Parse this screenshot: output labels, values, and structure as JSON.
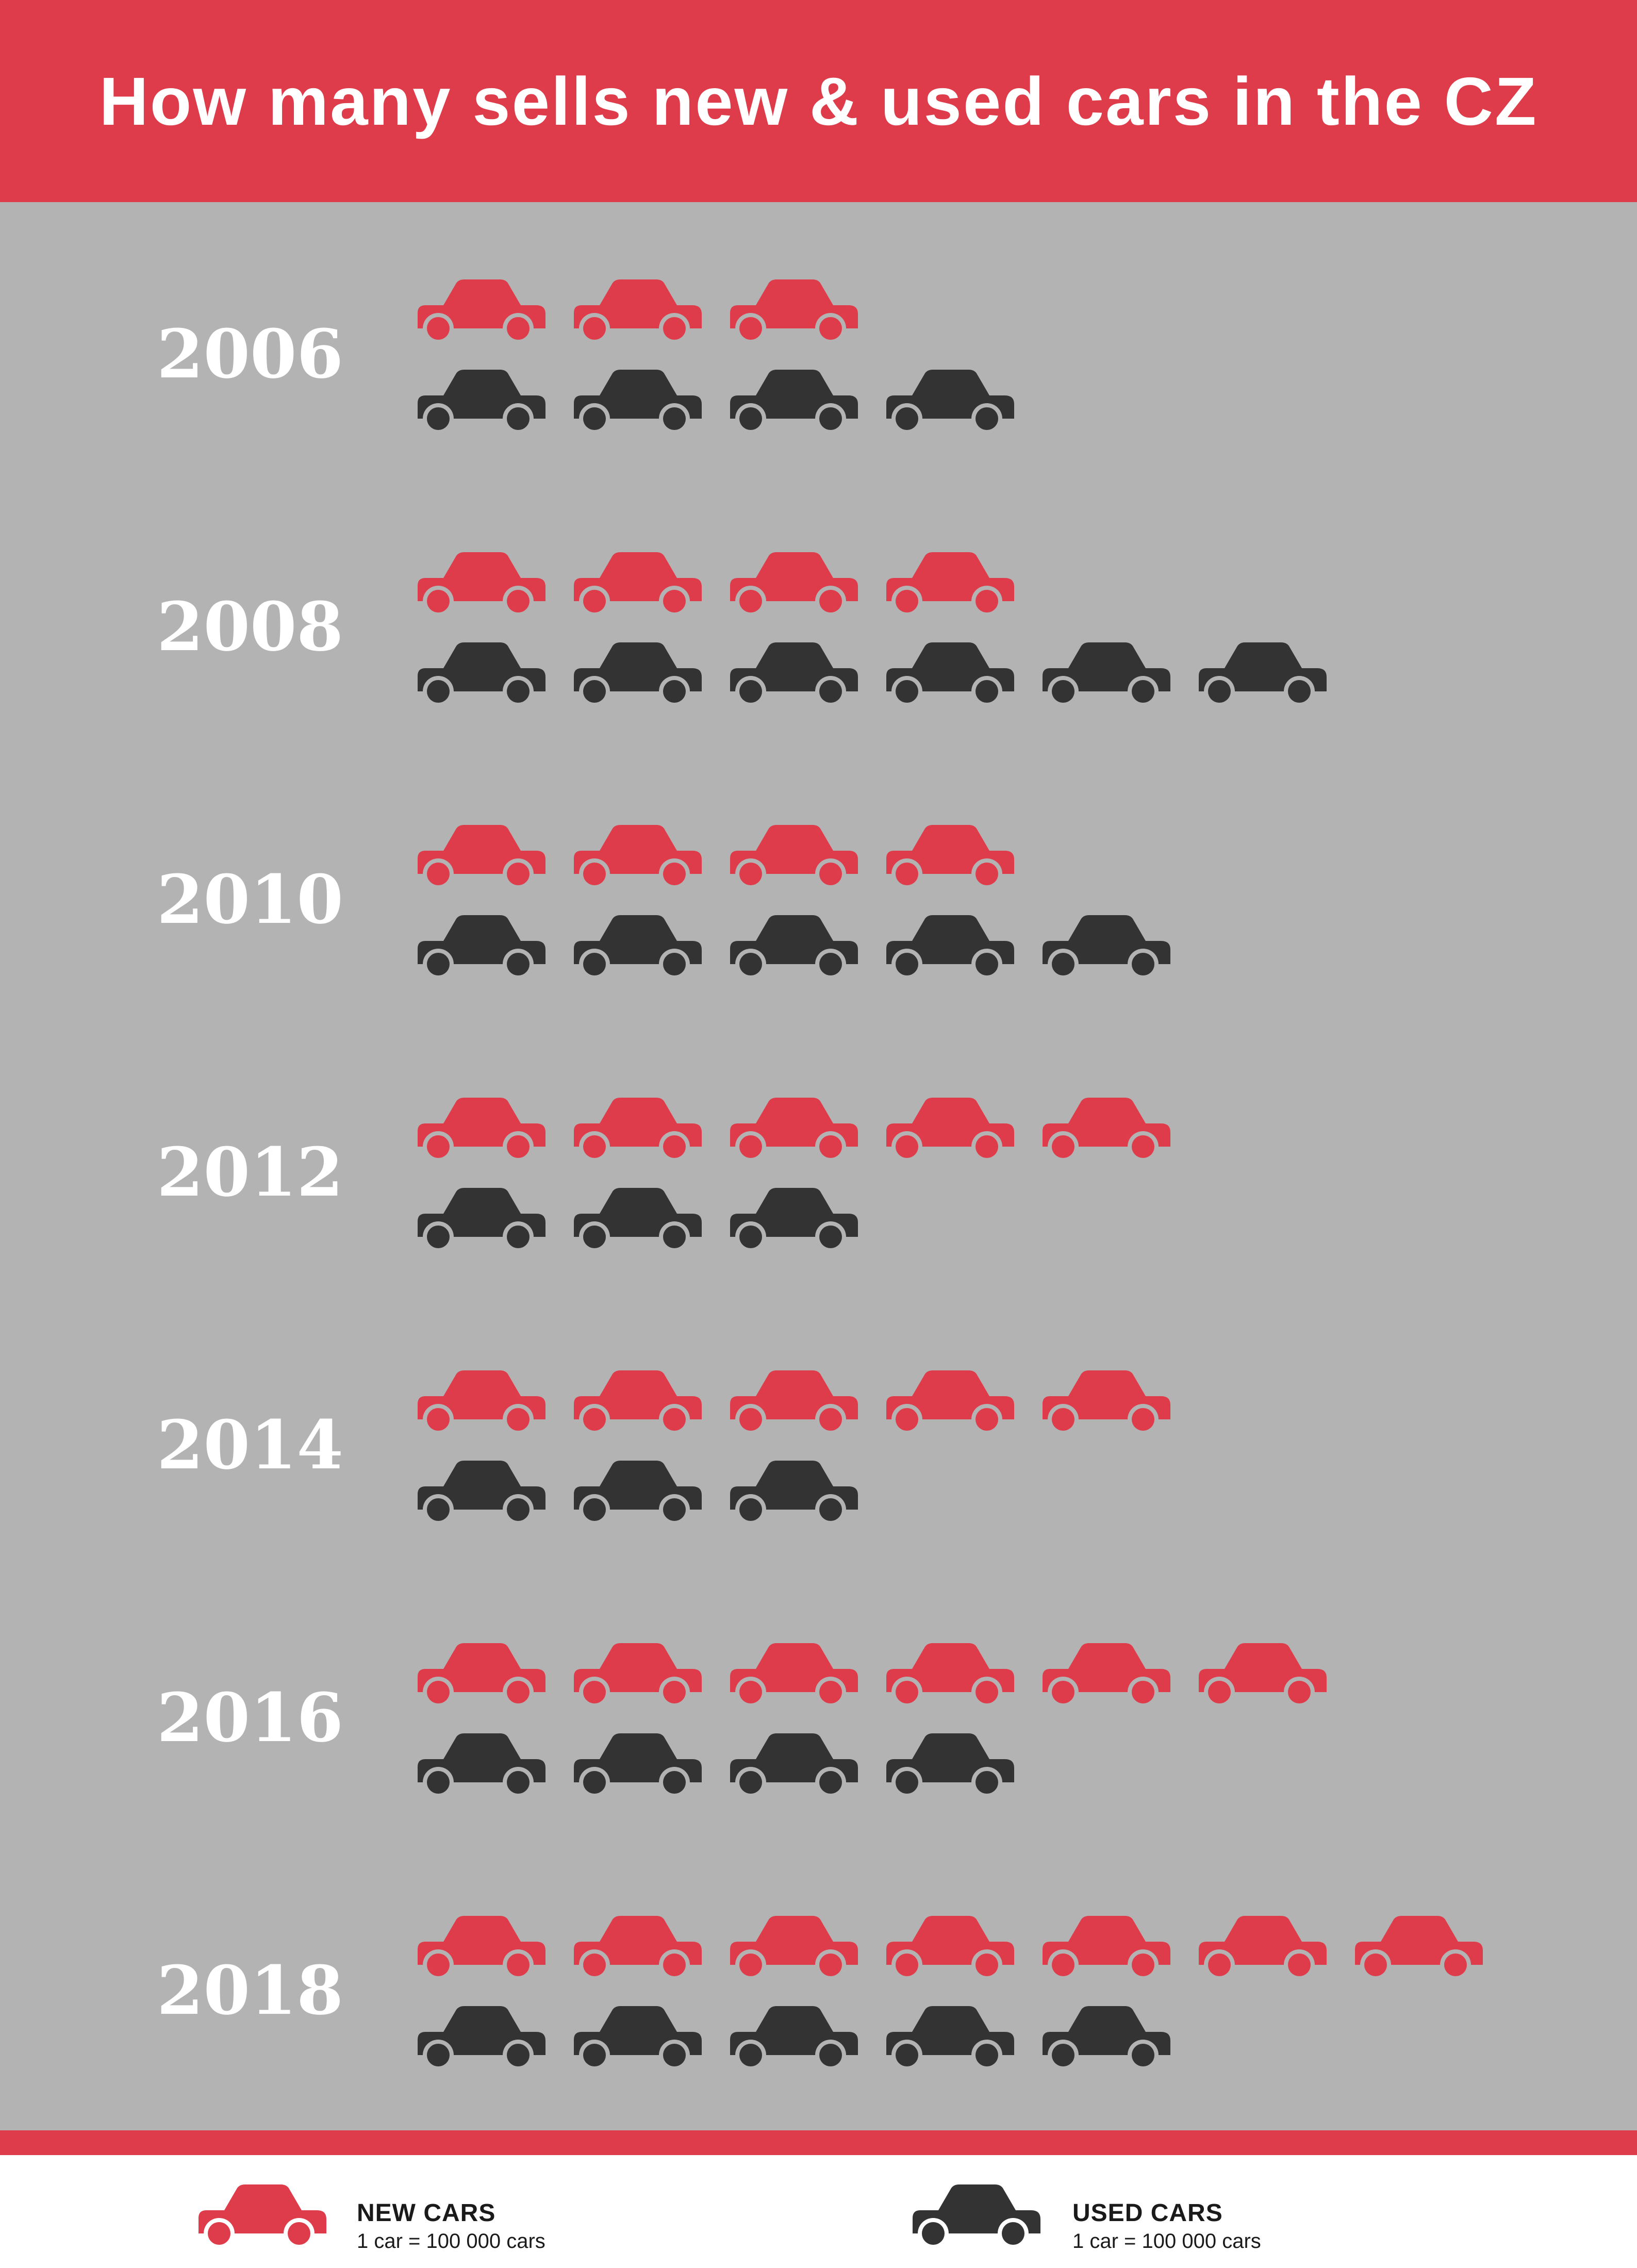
{
  "title": "How many sells new & used cars in the CZ",
  "colors": {
    "header": "#df3c4b",
    "background": "#b3b3b3",
    "new_cars": "#df3c4b",
    "used_cars": "#333333",
    "year_label": "#ffffff"
  },
  "icons": {
    "new_car": "car-icon",
    "used_car": "car-icon"
  },
  "legend": {
    "new": {
      "title": "NEW CARS",
      "unit": "1 car = 100 000 cars"
    },
    "used": {
      "title": "USED CARS",
      "unit": "1 car = 100 000 cars"
    }
  },
  "chart_data": {
    "type": "pictogram",
    "unit_value": 100000,
    "categories": [
      "2006",
      "2008",
      "2010",
      "2012",
      "2014",
      "2016",
      "2018"
    ],
    "series": [
      {
        "name": "NEW CARS",
        "color": "#df3c4b",
        "values": [
          300000,
          400000,
          400000,
          500000,
          500000,
          600000,
          700000
        ]
      },
      {
        "name": "USED CARS",
        "color": "#333333",
        "values": [
          400000,
          600000,
          500000,
          300000,
          300000,
          400000,
          500000
        ]
      }
    ]
  }
}
